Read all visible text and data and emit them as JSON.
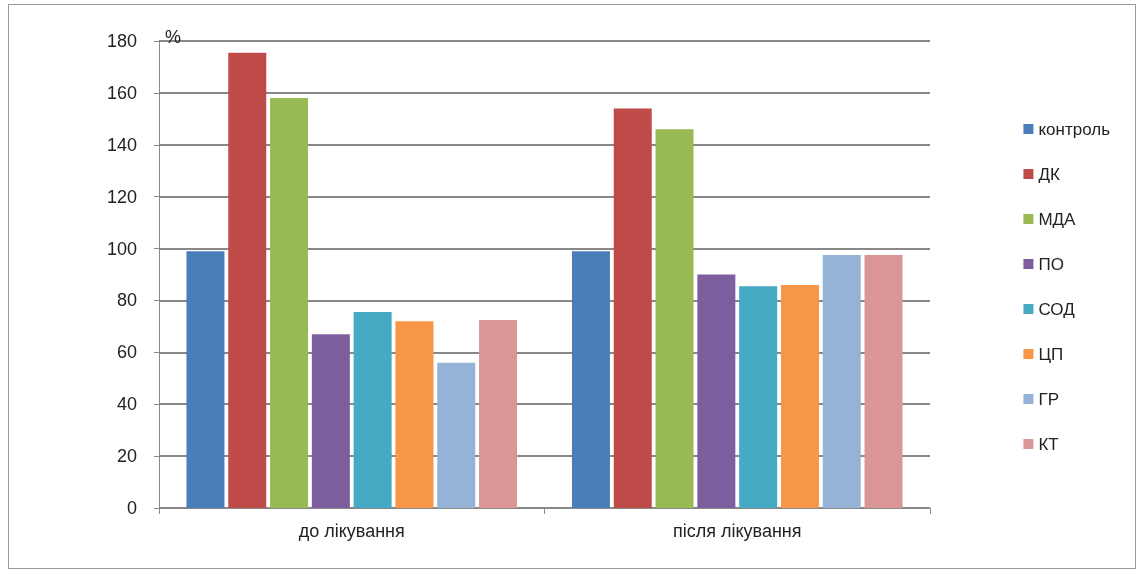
{
  "chart_data": {
    "type": "bar",
    "ylabel": "%",
    "categories": [
      "до лікування",
      "після лікування"
    ],
    "series": [
      {
        "name": "контроль",
        "color": "#4a7ebb",
        "values": [
          99,
          99
        ]
      },
      {
        "name": "ДК",
        "color": "#be4b48",
        "values": [
          175.5,
          154
        ]
      },
      {
        "name": "МДА",
        "color": "#98b954",
        "values": [
          158,
          146
        ]
      },
      {
        "name": "ПО",
        "color": "#7d5fa0",
        "values": [
          67,
          90
        ]
      },
      {
        "name": "СОД",
        "color": "#46aac5",
        "values": [
          75.5,
          85.5
        ]
      },
      {
        "name": "ЦП",
        "color": "#f79646",
        "values": [
          72,
          86
        ]
      },
      {
        "name": "ГР",
        "color": "#95b3d7",
        "values": [
          56,
          97.5
        ]
      },
      {
        "name": "КТ",
        "color": "#d99694",
        "values": [
          72.5,
          97.5
        ]
      }
    ],
    "ylim": [
      0,
      180
    ],
    "yticks": [
      0,
      20,
      40,
      60,
      80,
      100,
      120,
      140,
      160,
      180
    ],
    "grid": "y",
    "legend": "right"
  }
}
